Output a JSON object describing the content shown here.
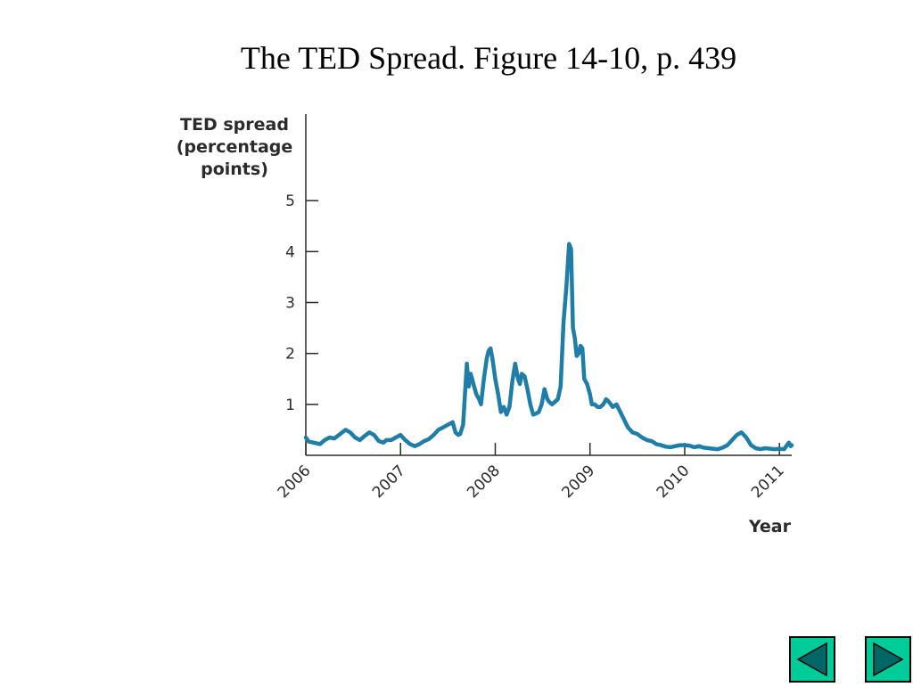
{
  "slide": {
    "title": "The TED Spread. Figure 14-10, p. 439"
  },
  "chart_data": {
    "type": "line",
    "ylabel_lines": [
      "TED spread",
      "(percentage",
      "points)"
    ],
    "xlabel": "Year",
    "xlim": [
      2006.0,
      2011.13
    ],
    "ylim": [
      0,
      6.7
    ],
    "y_ticks": [
      1,
      2,
      3,
      4,
      5
    ],
    "x_ticks": [
      "2006",
      "2007",
      "2008",
      "2009",
      "2010",
      "2011"
    ],
    "x_tick_values": [
      2006,
      2007,
      2008,
      2009,
      2010,
      2011
    ],
    "grid": false,
    "line_color": "#1f7ea8",
    "series": [
      {
        "x": [
          2006.0,
          2006.03,
          2006.08,
          2006.15,
          2006.2,
          2006.25,
          2006.3,
          2006.35,
          2006.42,
          2006.47,
          2006.52,
          2006.57,
          2006.62,
          2006.67,
          2006.72,
          2006.77,
          2006.82,
          2006.85,
          2006.9,
          2006.95,
          2007.0,
          2007.05,
          2007.1,
          2007.15,
          2007.2,
          2007.25,
          2007.3,
          2007.35,
          2007.4,
          2007.45,
          2007.5,
          2007.55,
          2007.58,
          2007.61,
          2007.63,
          2007.66,
          2007.68,
          2007.7,
          2007.72,
          2007.74,
          2007.77,
          2007.8,
          2007.83,
          2007.85,
          2007.88,
          2007.91,
          2007.93,
          2007.95,
          2007.97,
          2008.0,
          2008.03,
          2008.06,
          2008.09,
          2008.12,
          2008.15,
          2008.18,
          2008.21,
          2008.24,
          2008.26,
          2008.28,
          2008.31,
          2008.34,
          2008.37,
          2008.4,
          2008.43,
          2008.46,
          2008.49,
          2008.52,
          2008.55,
          2008.57,
          2008.6,
          2008.63,
          2008.66,
          2008.69,
          2008.72,
          2008.75,
          2008.78,
          2008.8,
          2008.82,
          2008.84,
          2008.86,
          2008.88,
          2008.9,
          2008.92,
          2008.94,
          2008.97,
          2009.0,
          2009.02,
          2009.05,
          2009.08,
          2009.11,
          2009.14,
          2009.17,
          2009.2,
          2009.24,
          2009.28,
          2009.32,
          2009.36,
          2009.4,
          2009.45,
          2009.5,
          2009.55,
          2009.6,
          2009.65,
          2009.7,
          2009.75,
          2009.8,
          2009.85,
          2009.9,
          2009.95,
          2010.0,
          2010.05,
          2010.1,
          2010.15,
          2010.2,
          2010.25,
          2010.3,
          2010.35,
          2010.4,
          2010.45,
          2010.5,
          2010.55,
          2010.6,
          2010.65,
          2010.7,
          2010.75,
          2010.8,
          2010.85,
          2010.9,
          2010.95,
          2011.0,
          2011.05,
          2011.08,
          2011.1,
          2011.12,
          2011.13
        ],
        "values": [
          0.35,
          0.27,
          0.25,
          0.22,
          0.3,
          0.35,
          0.33,
          0.4,
          0.5,
          0.45,
          0.35,
          0.3,
          0.38,
          0.45,
          0.4,
          0.28,
          0.25,
          0.3,
          0.3,
          0.35,
          0.4,
          0.3,
          0.22,
          0.18,
          0.22,
          0.28,
          0.32,
          0.4,
          0.5,
          0.55,
          0.6,
          0.65,
          0.45,
          0.4,
          0.42,
          0.6,
          1.2,
          1.8,
          1.35,
          1.6,
          1.4,
          1.2,
          1.1,
          1.0,
          1.5,
          1.9,
          2.05,
          2.1,
          1.9,
          1.5,
          1.2,
          0.85,
          0.95,
          0.8,
          0.95,
          1.45,
          1.8,
          1.5,
          1.4,
          1.6,
          1.55,
          1.3,
          1.0,
          0.8,
          0.82,
          0.85,
          1.0,
          1.3,
          1.1,
          1.05,
          1.0,
          1.05,
          1.1,
          1.35,
          2.6,
          3.3,
          4.15,
          4.05,
          2.5,
          2.3,
          1.95,
          2.0,
          2.15,
          2.1,
          1.5,
          1.4,
          1.2,
          1.0,
          1.0,
          0.95,
          0.95,
          1.0,
          1.1,
          1.05,
          0.95,
          1.0,
          0.85,
          0.7,
          0.55,
          0.45,
          0.42,
          0.35,
          0.3,
          0.28,
          0.22,
          0.2,
          0.17,
          0.16,
          0.18,
          0.2,
          0.2,
          0.19,
          0.16,
          0.18,
          0.15,
          0.14,
          0.13,
          0.12,
          0.15,
          0.2,
          0.3,
          0.4,
          0.45,
          0.35,
          0.2,
          0.14,
          0.12,
          0.14,
          0.13,
          0.12,
          0.13,
          0.12,
          0.2,
          0.25,
          0.18,
          0.2
        ]
      }
    ]
  },
  "nav": {
    "prev_icon": "triangle-left-icon",
    "next_icon": "triangle-right-icon",
    "button_fill": "#00cc99"
  }
}
